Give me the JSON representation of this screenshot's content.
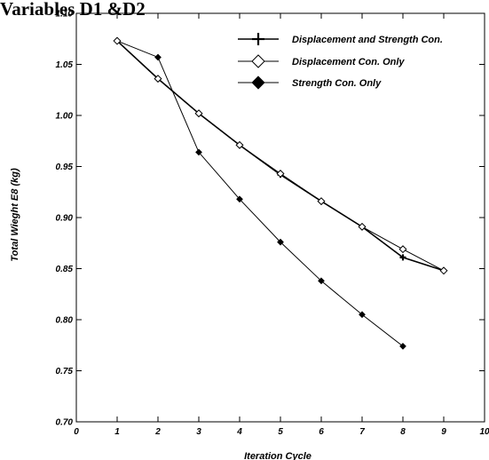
{
  "page": {
    "title": "Variables D1 &D2"
  },
  "chart_data": {
    "type": "line",
    "title": "",
    "xlabel": "Iteration Cycle",
    "ylabel": "Total Wieght E8 (kg)",
    "xlim": [
      0,
      10
    ],
    "ylim": [
      0.7,
      1.1
    ],
    "x_ticks": [
      "0",
      "1",
      "2",
      "3",
      "4",
      "5",
      "6",
      "7",
      "8",
      "9",
      "10"
    ],
    "y_ticks": [
      "0.70",
      "0.75",
      "0.80",
      "0.85",
      "0.90",
      "0.95",
      "1.00",
      "1.05",
      "1.10"
    ],
    "grid": false,
    "legend_position": "top-right",
    "series": [
      {
        "name": "Displacement and Strength Con.",
        "marker": "plus",
        "x": [
          1,
          2,
          3,
          4,
          5,
          6,
          7,
          8,
          9
        ],
        "y": [
          1.073,
          1.036,
          1.002,
          0.971,
          0.942,
          0.916,
          0.891,
          0.861,
          0.848
        ]
      },
      {
        "name": "Displacement Con. Only",
        "marker": "open-diamond",
        "x": [
          1,
          2,
          3,
          4,
          5,
          6,
          7,
          8,
          9
        ],
        "y": [
          1.073,
          1.036,
          1.002,
          0.971,
          0.943,
          0.916,
          0.891,
          0.869,
          0.848
        ]
      },
      {
        "name": "Strength Con. Only",
        "marker": "filled-diamond",
        "x": [
          1,
          2,
          3,
          4,
          5,
          6,
          7,
          8
        ],
        "y": [
          1.073,
          1.057,
          0.964,
          0.918,
          0.876,
          0.838,
          0.805,
          0.774
        ]
      }
    ],
    "colors": {
      "line": "#000000",
      "marker_fill": "#000000",
      "open_marker_fill": "#ffffff"
    }
  }
}
